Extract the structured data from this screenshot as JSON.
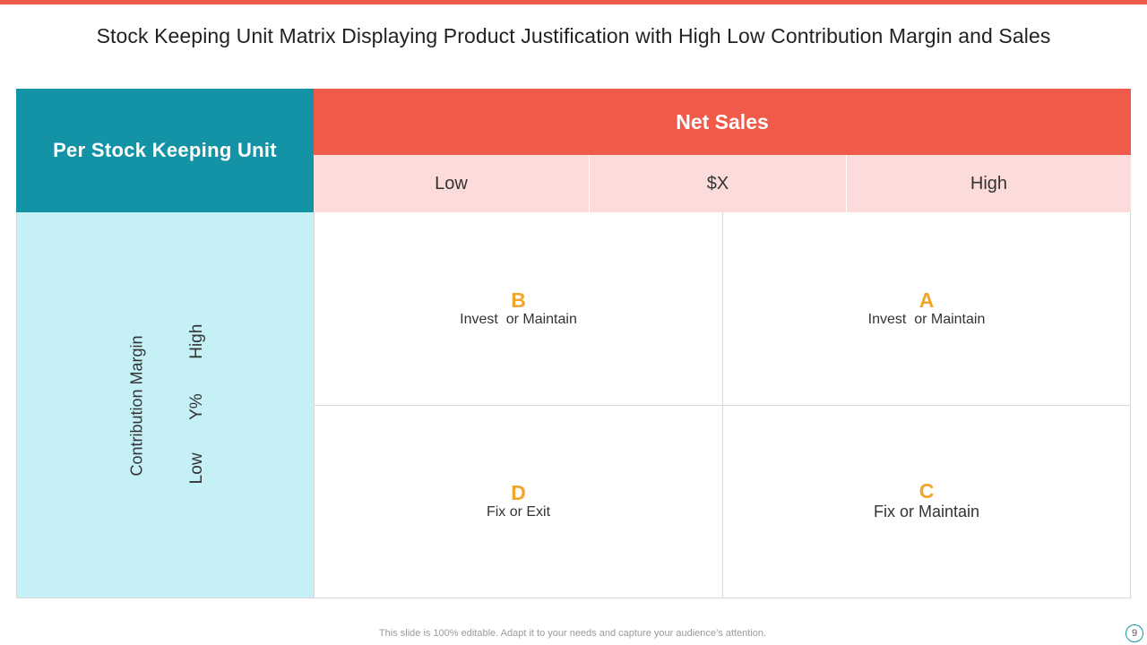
{
  "slide": {
    "title": "Stock Keeping Unit Matrix Displaying Product Justification with High Low Contribution Margin and Sales",
    "footer_text": "This slide is 100% editable.  Adapt it to your needs and capture your audience’s attention.",
    "page_number": "9",
    "accent_color": "#f05a4a",
    "teal_color": "#1492a6"
  },
  "matrix": {
    "corner_label": "Per Stock Keeping Unit",
    "net_sales_header": "Net Sales",
    "sales_levels": {
      "low": "Low",
      "mid": "$X",
      "high": "High"
    },
    "margin_label": "Contribution Margin",
    "margin_levels": {
      "low": "Low",
      "mid": "Y%",
      "high": "High"
    },
    "quadrants": {
      "b": {
        "letter": "B",
        "text": "Invest  or Maintain"
      },
      "a": {
        "letter": "A",
        "text": "Invest  or Maintain"
      },
      "d": {
        "letter": "D",
        "text": "Fix or Exit"
      },
      "c": {
        "letter": "C",
        "text": "Fix or Maintain"
      }
    }
  }
}
